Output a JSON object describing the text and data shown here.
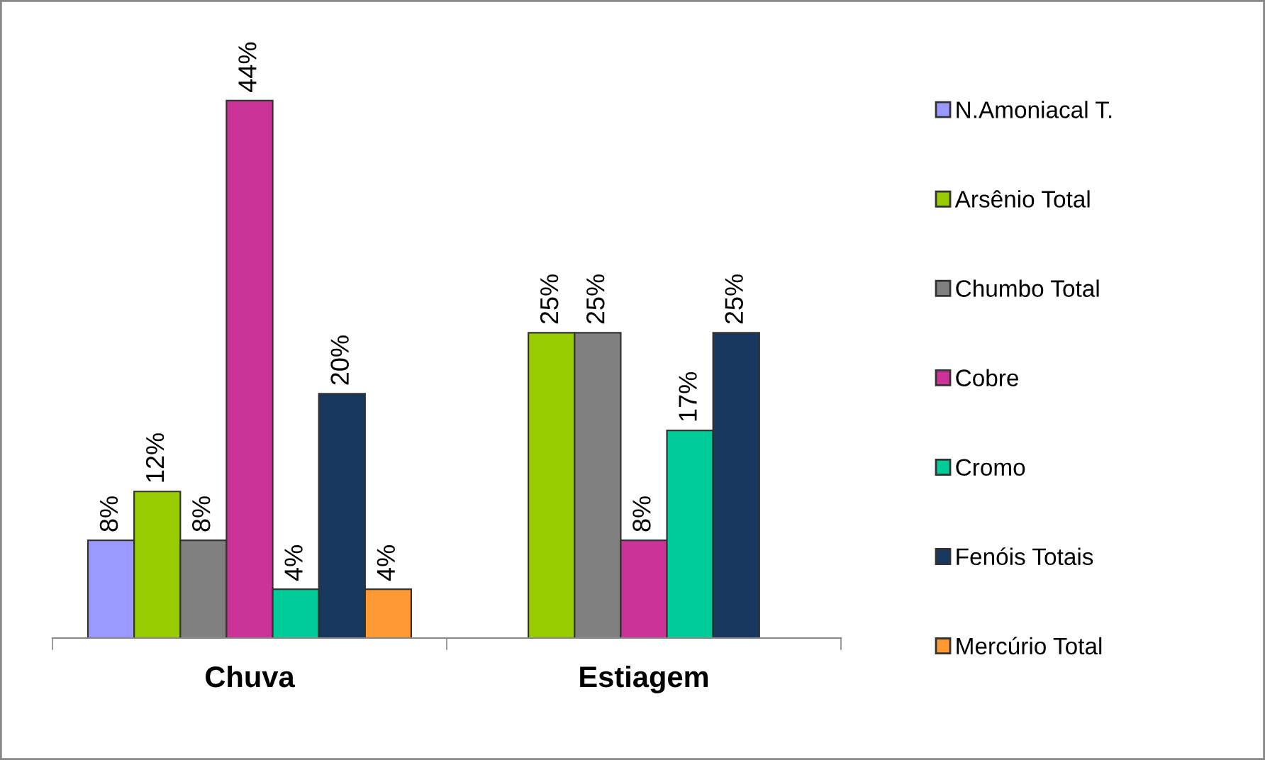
{
  "chart_data": {
    "type": "bar",
    "categories": [
      "Chuva",
      "Estiagem"
    ],
    "legend": "right",
    "grid": false,
    "series": [
      {
        "name": "N.Amoniacal T.",
        "color": "#9999ff",
        "values": [
          8,
          null
        ],
        "value_labels": [
          "8%",
          null
        ]
      },
      {
        "name": "Arsênio Total",
        "color": "#99cc00",
        "values": [
          12,
          25
        ],
        "value_labels": [
          "12%",
          "25%"
        ]
      },
      {
        "name": "Chumbo Total",
        "color": "#808080",
        "values": [
          8,
          25
        ],
        "value_labels": [
          "8%",
          "25%"
        ]
      },
      {
        "name": "Cobre",
        "color": "#cc3399",
        "values": [
          44,
          8
        ],
        "value_labels": [
          "44%",
          "8%"
        ]
      },
      {
        "name": "Cromo",
        "color": "#00cc99",
        "values": [
          4,
          17
        ],
        "value_labels": [
          "4%",
          "17%"
        ]
      },
      {
        "name": "Fenóis Totais",
        "color": "#17375e",
        "values": [
          20,
          25
        ],
        "value_labels": [
          "20%",
          "25%"
        ]
      },
      {
        "name": "Mercúrio Total",
        "color": "#ff9933",
        "values": [
          4,
          null
        ],
        "value_labels": [
          "4%",
          null
        ]
      }
    ]
  }
}
